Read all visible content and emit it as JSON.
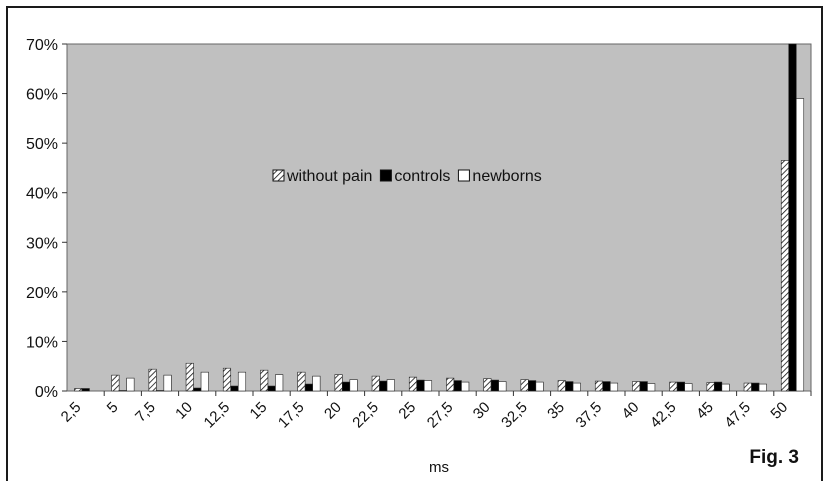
{
  "figure_label": "Fig. 3",
  "chart_data": {
    "type": "bar",
    "title": "",
    "xlabel": "ms",
    "ylabel": "",
    "ylim": [
      0,
      70
    ],
    "y_unit": "%",
    "yticks": [
      "0%",
      "10%",
      "20%",
      "30%",
      "40%",
      "50%",
      "60%",
      "70%"
    ],
    "grid": false,
    "legend_position": "center",
    "background_color": "#c0c0c0",
    "categories": [
      "2,5",
      "5",
      "7,5",
      "10",
      "12,5",
      "15",
      "17,5",
      "20",
      "22,5",
      "25",
      "27,5",
      "30",
      "32,5",
      "35",
      "37,5",
      "40",
      "42,5",
      "45",
      "47,5",
      "50"
    ],
    "series": [
      {
        "name": "without pain",
        "pattern": "hatched",
        "color": "#ffffff",
        "values": [
          0.5,
          3.2,
          4.4,
          5.6,
          4.6,
          4.2,
          3.8,
          3.3,
          3.0,
          2.8,
          2.6,
          2.5,
          2.3,
          2.1,
          2.0,
          1.9,
          1.8,
          1.7,
          1.6,
          46.5
        ]
      },
      {
        "name": "controls",
        "pattern": "solid",
        "color": "#000000",
        "values": [
          0.5,
          0.1,
          0.1,
          0.6,
          1.0,
          1.0,
          1.4,
          1.8,
          2.0,
          2.2,
          2.1,
          2.2,
          2.1,
          1.9,
          1.9,
          1.9,
          1.8,
          1.8,
          1.6,
          70.0
        ]
      },
      {
        "name": "newborns",
        "pattern": "solid",
        "color": "#ffffff",
        "values": [
          0.0,
          2.6,
          3.2,
          3.8,
          3.8,
          3.3,
          3.0,
          2.3,
          2.3,
          2.1,
          1.8,
          1.9,
          1.8,
          1.6,
          1.6,
          1.5,
          1.5,
          1.4,
          1.4,
          59.0
        ]
      }
    ]
  }
}
